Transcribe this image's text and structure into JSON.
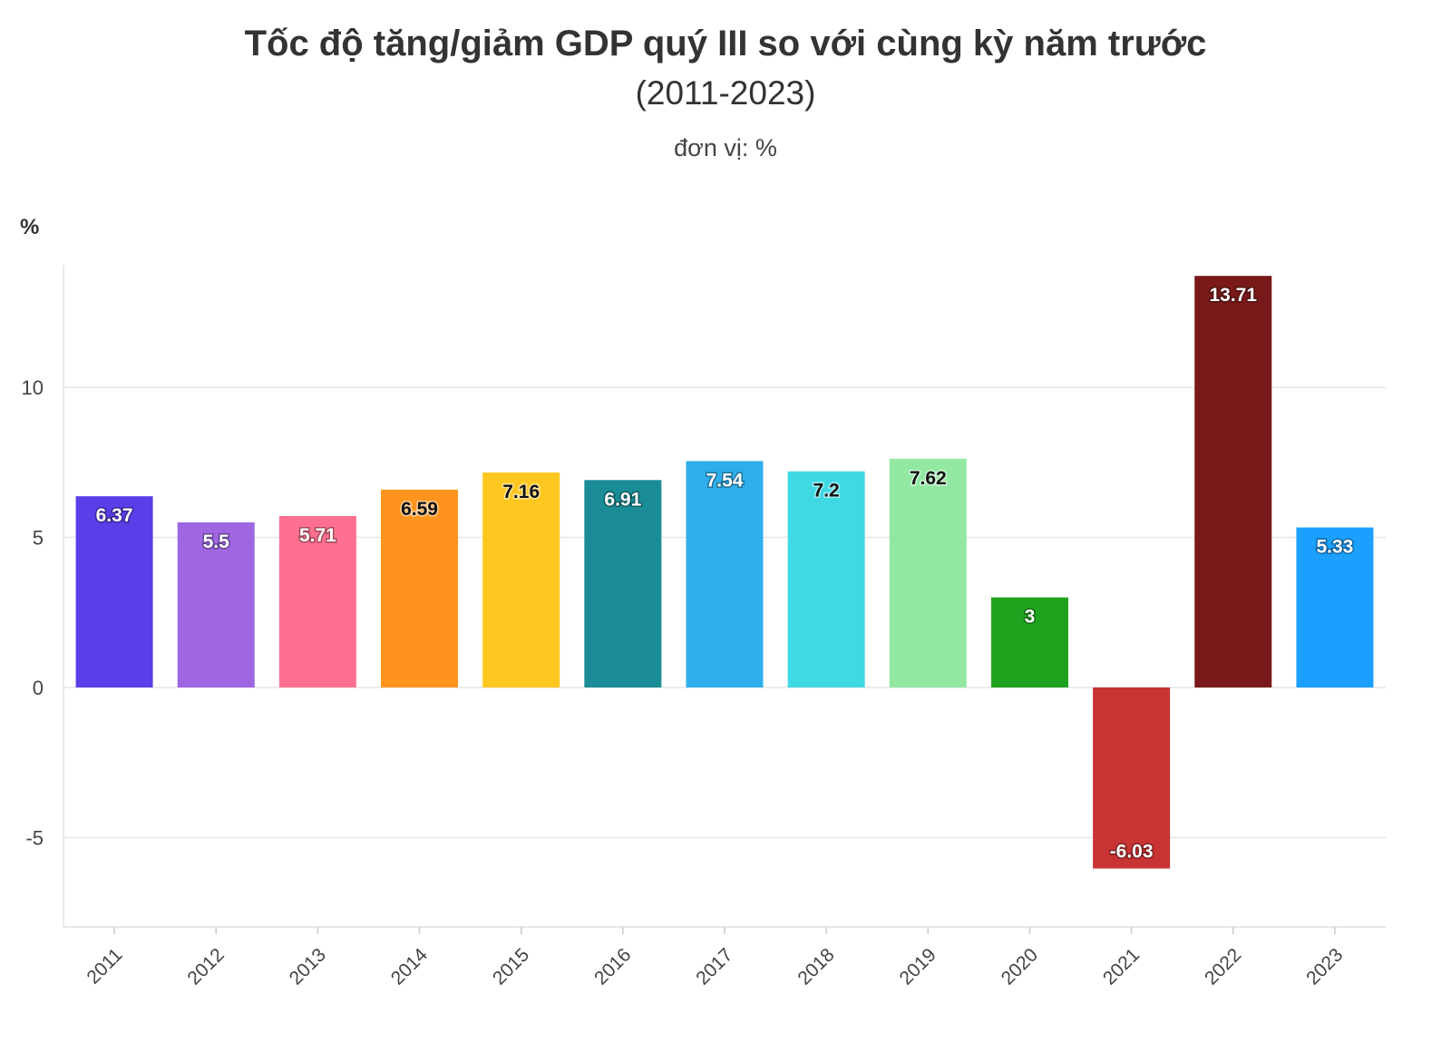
{
  "header": {
    "title": "Tốc độ tăng/giảm GDP quý III so với cùng kỳ năm trước",
    "subtitle": "(2011-2023)",
    "unit": "đơn vị: %"
  },
  "chart_data": {
    "type": "bar",
    "title": "Tốc độ tăng/giảm GDP quý III so với cùng kỳ năm trước",
    "subtitle": "(2011-2023)",
    "xlabel": "",
    "ylabel": "%",
    "ylim": [
      -8,
      14
    ],
    "yticks": [
      -5,
      0,
      5,
      10
    ],
    "grid": true,
    "categories": [
      "2011",
      "2012",
      "2013",
      "2014",
      "2015",
      "2016",
      "2017",
      "2018",
      "2019",
      "2020",
      "2021",
      "2022",
      "2023"
    ],
    "values": [
      6.37,
      5.5,
      5.71,
      6.59,
      7.16,
      6.91,
      7.54,
      7.2,
      7.62,
      3,
      -6.03,
      13.71,
      5.33
    ],
    "value_labels": [
      "6.37",
      "5.5",
      "5.71",
      "6.59",
      "7.16",
      "6.91",
      "7.54",
      "7.2",
      "7.62",
      "3",
      "-6.03",
      "13.71",
      "5.33"
    ],
    "colors": [
      "#5a3ee8",
      "#9f66e2",
      "#ff7090",
      "#ff951e",
      "#ffc71f",
      "#1a8c96",
      "#2eaeea",
      "#3fd9e4",
      "#92e8a1",
      "#1fa31f",
      "#c83333",
      "#7a1919",
      "#1ba0ff"
    ],
    "label_colors": [
      "#ffffff",
      "#ffffff",
      "#ffffff",
      "#111111",
      "#111111",
      "#ffffff",
      "#ffffff",
      "#111111",
      "#111111",
      "#ffffff",
      "#ffffff",
      "#ffffff",
      "#ffffff"
    ]
  }
}
